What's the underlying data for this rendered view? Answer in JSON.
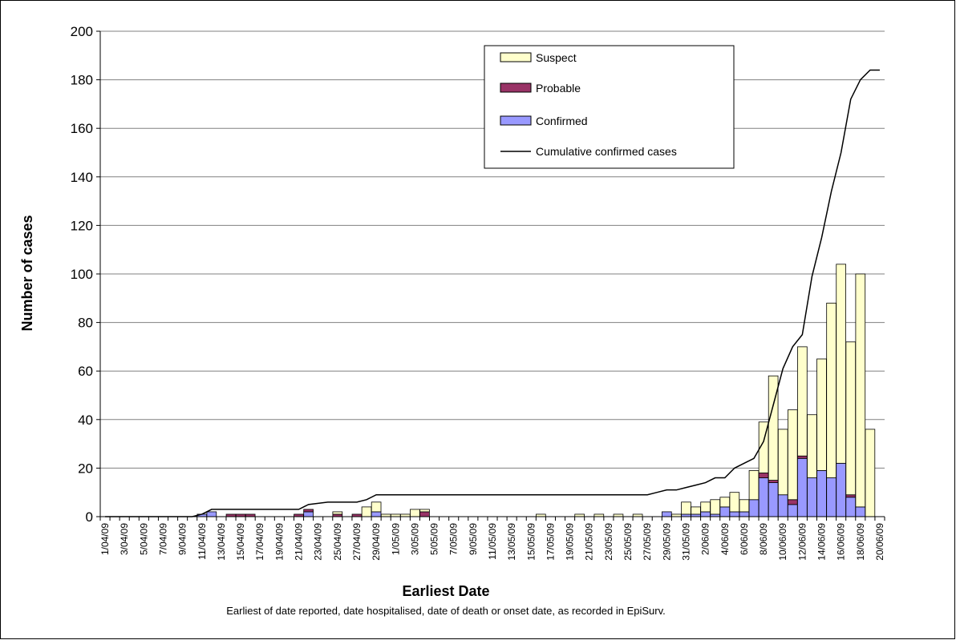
{
  "chart_data": {
    "type": "bar",
    "stacked": true,
    "title": "",
    "xlabel": "Earliest Date",
    "ylabel": "Number of cases",
    "caption": "Earliest of date reported, date hospitalised, date of death or onset date, as recorded in EpiSurv.",
    "ylim": [
      0,
      200
    ],
    "yticks": [
      0,
      20,
      40,
      60,
      80,
      100,
      120,
      140,
      160,
      180,
      200
    ],
    "grid": true,
    "legend_position": "top-right",
    "categories": [
      "1/04/09",
      "2/04/09",
      "3/04/09",
      "4/04/09",
      "5/04/09",
      "6/04/09",
      "7/04/09",
      "8/04/09",
      "9/04/09",
      "10/04/09",
      "11/04/09",
      "12/04/09",
      "13/04/09",
      "14/04/09",
      "15/04/09",
      "16/04/09",
      "17/04/09",
      "18/04/09",
      "19/04/09",
      "20/04/09",
      "21/04/09",
      "22/04/09",
      "23/04/09",
      "24/04/09",
      "25/04/09",
      "26/04/09",
      "27/04/09",
      "28/04/09",
      "29/04/09",
      "30/04/09",
      "1/05/09",
      "2/05/09",
      "3/05/09",
      "4/05/09",
      "5/05/09",
      "6/05/09",
      "7/05/09",
      "8/05/09",
      "9/05/09",
      "10/05/09",
      "11/05/09",
      "12/05/09",
      "13/05/09",
      "14/05/09",
      "15/05/09",
      "16/05/09",
      "17/05/09",
      "18/05/09",
      "19/05/09",
      "20/05/09",
      "21/05/09",
      "22/05/09",
      "23/05/09",
      "24/05/09",
      "25/05/09",
      "26/05/09",
      "27/05/09",
      "28/05/09",
      "29/05/09",
      "30/05/09",
      "31/05/09",
      "1/06/09",
      "2/06/09",
      "3/06/09",
      "4/06/09",
      "5/06/09",
      "6/06/09",
      "7/06/09",
      "8/06/09",
      "9/06/09",
      "10/06/09",
      "11/06/09",
      "12/06/09",
      "13/06/09",
      "14/06/09",
      "15/06/09",
      "16/06/09",
      "17/06/09",
      "18/06/09",
      "19/06/09",
      "20/06/09"
    ],
    "tick_labels": [
      "1/04/09",
      "3/04/09",
      "5/04/09",
      "7/04/09",
      "9/04/09",
      "11/04/09",
      "13/04/09",
      "15/04/09",
      "17/04/09",
      "19/04/09",
      "21/04/09",
      "23/04/09",
      "25/04/09",
      "27/04/09",
      "29/04/09",
      "1/05/09",
      "3/05/09",
      "5/05/09",
      "7/05/09",
      "9/05/09",
      "11/05/09",
      "13/05/09",
      "15/05/09",
      "17/05/09",
      "19/05/09",
      "21/05/09",
      "23/05/09",
      "25/05/09",
      "27/05/09",
      "29/05/09",
      "31/05/09",
      "2/06/09",
      "4/06/09",
      "6/06/09",
      "8/06/09",
      "10/06/09",
      "12/06/09",
      "14/06/09",
      "16/06/09",
      "18/06/09",
      "20/06/09"
    ],
    "series": [
      {
        "name": "Confirmed",
        "color": "#9999ff",
        "values": [
          0,
          0,
          0,
          0,
          0,
          0,
          0,
          0,
          0,
          0,
          1,
          2,
          0,
          0,
          0,
          0,
          0,
          0,
          0,
          0,
          0,
          2,
          0,
          0,
          0,
          0,
          0,
          0,
          2,
          0,
          0,
          0,
          0,
          0,
          0,
          0,
          0,
          0,
          0,
          0,
          0,
          0,
          0,
          0,
          0,
          0,
          0,
          0,
          0,
          0,
          0,
          0,
          0,
          0,
          0,
          0,
          0,
          0,
          2,
          0,
          1,
          1,
          2,
          1,
          4,
          2,
          2,
          7,
          16,
          14,
          9,
          5,
          24,
          16,
          19,
          16,
          22,
          8,
          4,
          0,
          0
        ]
      },
      {
        "name": "Probable",
        "color": "#993366",
        "values": [
          0,
          0,
          0,
          0,
          0,
          0,
          0,
          0,
          0,
          0,
          0,
          0,
          0,
          1,
          1,
          1,
          0,
          0,
          0,
          0,
          1,
          1,
          0,
          0,
          1,
          0,
          1,
          0,
          0,
          0,
          0,
          0,
          0,
          2,
          0,
          0,
          0,
          0,
          0,
          0,
          0,
          0,
          0,
          0,
          0,
          0,
          0,
          0,
          0,
          0,
          0,
          0,
          0,
          0,
          0,
          0,
          0,
          0,
          0,
          0,
          0,
          0,
          0,
          0,
          0,
          0,
          0,
          0,
          2,
          1,
          0,
          2,
          1,
          0,
          0,
          0,
          0,
          1,
          0,
          0,
          0
        ]
      },
      {
        "name": "Suspect",
        "color": "#ffffcc",
        "values": [
          0,
          0,
          0,
          0,
          0,
          0,
          0,
          0,
          0,
          0,
          0,
          0,
          0,
          0,
          0,
          0,
          0,
          0,
          0,
          0,
          0,
          0,
          0,
          0,
          1,
          0,
          0,
          4,
          4,
          1,
          1,
          1,
          3,
          1,
          0,
          0,
          0,
          0,
          0,
          0,
          0,
          0,
          0,
          0,
          0,
          1,
          0,
          0,
          0,
          1,
          0,
          1,
          0,
          1,
          0,
          1,
          0,
          0,
          0,
          1,
          5,
          3,
          4,
          6,
          4,
          8,
          5,
          12,
          21,
          43,
          27,
          37,
          45,
          26,
          46,
          72,
          82,
          63,
          96,
          36,
          0
        ]
      }
    ],
    "line_series": {
      "name": "Cumulative confirmed cases",
      "color": "#000000",
      "values": [
        0,
        0,
        0,
        0,
        0,
        0,
        0,
        0,
        0,
        0,
        1,
        3,
        3,
        3,
        3,
        3,
        3,
        3,
        3,
        3,
        3,
        5,
        5.5,
        6,
        6,
        6,
        6,
        7,
        9,
        9,
        9,
        9,
        9,
        9,
        9,
        9,
        9,
        9,
        9,
        9,
        9,
        9,
        9,
        9,
        9,
        9,
        9,
        9,
        9,
        9,
        9,
        9,
        9,
        9,
        9,
        9,
        9,
        10,
        11,
        11,
        12,
        13,
        14,
        16,
        16,
        20,
        22,
        24,
        31,
        46,
        61,
        70,
        75,
        99,
        115,
        134,
        150,
        172,
        180,
        184,
        184
      ]
    },
    "legend": [
      "Suspect",
      "Probable",
      "Confirmed",
      "Cumulative confirmed cases"
    ]
  }
}
